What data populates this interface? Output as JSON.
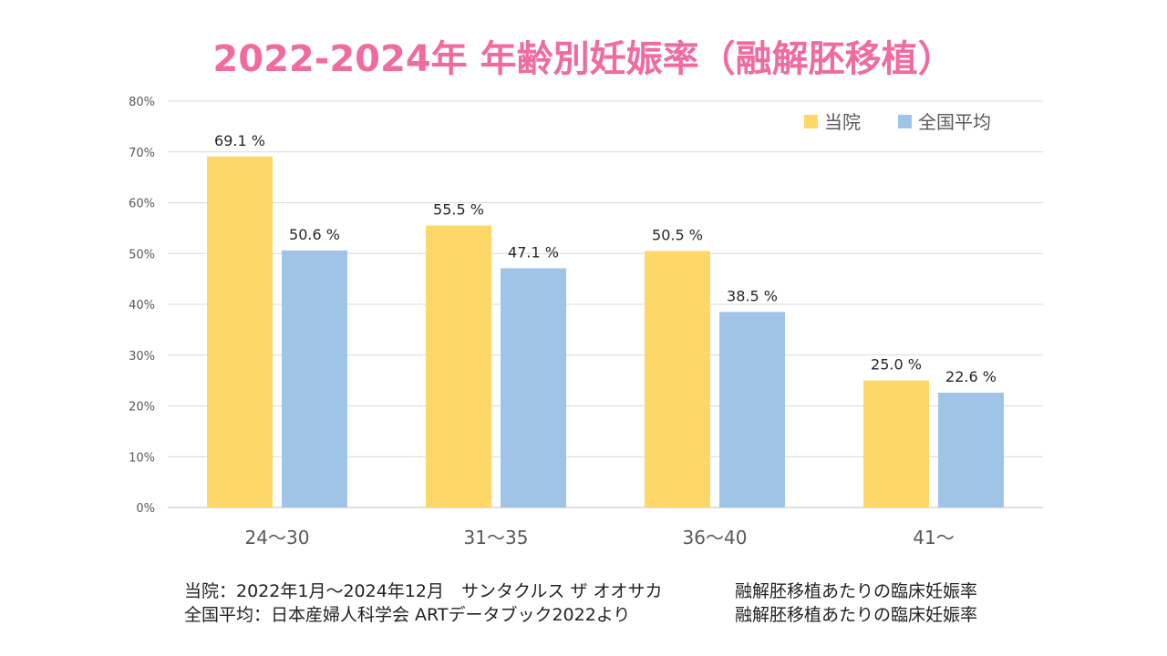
{
  "title": "2022-2024年 年齢別妊娠率（融解胚移植）",
  "chart_data": {
    "type": "bar",
    "categories": [
      "24～30",
      "31～35",
      "36～40",
      "41～"
    ],
    "series": [
      {
        "name": "当院",
        "color": "#fdd868",
        "values": [
          69.1,
          55.5,
          50.5,
          25.0
        ],
        "labels": [
          "69.1 %",
          "55.5 %",
          "50.5 %",
          "25.0 %"
        ]
      },
      {
        "name": "全国平均",
        "color": "#a0c4e6",
        "values": [
          50.6,
          47.1,
          38.5,
          22.6
        ],
        "labels": [
          "50.6 %",
          "47.1 %",
          "38.5 %",
          "22.6 %"
        ]
      }
    ],
    "ylim": [
      0,
      80
    ],
    "yticks": [
      0,
      10,
      20,
      30,
      40,
      50,
      60,
      70,
      80
    ],
    "ytick_labels": [
      "0%",
      "10%",
      "20%",
      "30%",
      "40%",
      "50%",
      "60%",
      "70%",
      "80%"
    ],
    "grid": true,
    "legend_position": "top-right"
  },
  "notes": {
    "line1_source": "当院：2022年1月～2024年12月　サンタクルス ザ オオサカ",
    "line1_desc": "融解胚移植あたりの臨床妊娠率",
    "line2_source": "全国平均：日本産婦人科学会 ARTデータブック2022より",
    "line2_desc": "融解胚移植あたりの臨床妊娠率"
  }
}
